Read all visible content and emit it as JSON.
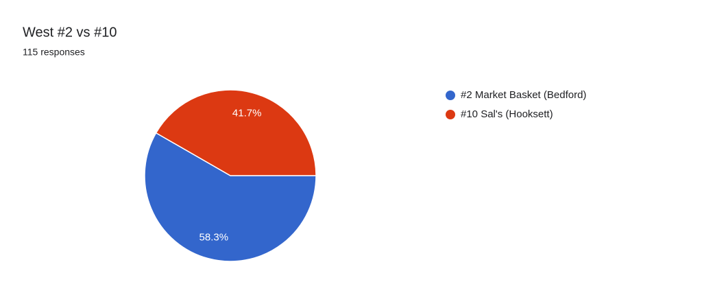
{
  "chart_data": {
    "type": "pie",
    "title": "West #2 vs #10",
    "subtitle": "115 responses",
    "categories": [
      "#2 Market Basket (Bedford)",
      "#10 Sal's (Hooksett)"
    ],
    "values": [
      58.3,
      41.7
    ],
    "value_labels": [
      "58.3%",
      "41.7%"
    ],
    "colors": [
      "#3366cc",
      "#dc3912"
    ]
  }
}
